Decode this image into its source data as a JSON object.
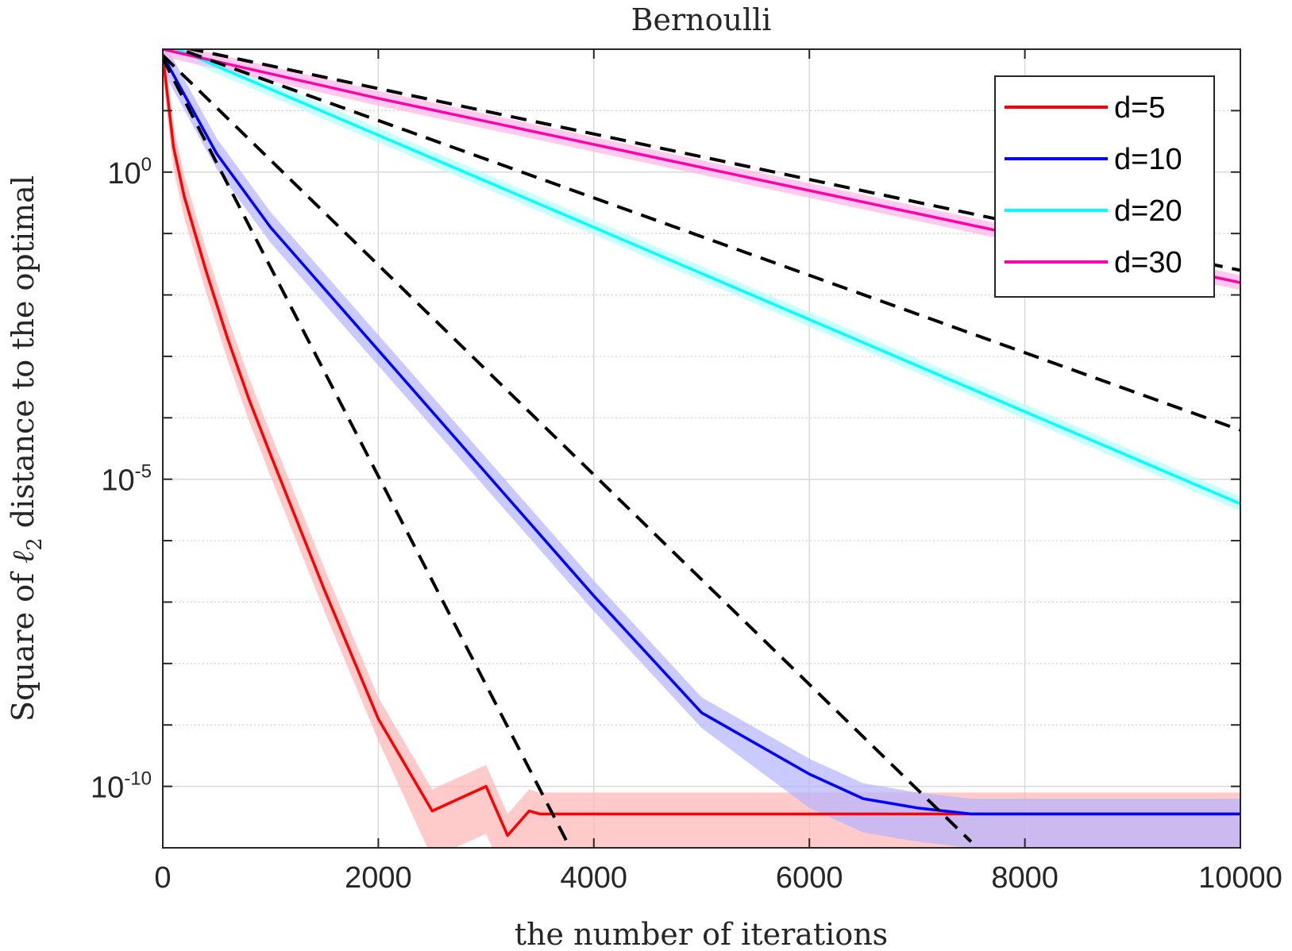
{
  "chart_data": {
    "type": "line",
    "title": "Bernoulli",
    "xlabel": "the number of iterations",
    "ylabel_parts": [
      "Square of ",
      "ℓ",
      "2",
      " distance to the optimal"
    ],
    "yscale": "log",
    "xlim": [
      0,
      10000
    ],
    "ylim_exponent": [
      -11,
      2
    ],
    "xticks": [
      0,
      2000,
      4000,
      6000,
      8000,
      10000
    ],
    "xtick_labels": [
      "0",
      "2000",
      "4000",
      "6000",
      "8000",
      "10000"
    ],
    "yticks": [
      {
        "base": "10",
        "exp": "0",
        "value_exponent": 0
      },
      {
        "base": "10",
        "exp": "-5",
        "value_exponent": -5
      },
      {
        "base": "10",
        "exp": "-10",
        "value_exponent": -10
      }
    ],
    "grid": true,
    "legend_location": "top-right",
    "series": [
      {
        "name": "d=5",
        "color": "#ff0000",
        "band_color": "#ffb3b3",
        "x": [
          0,
          100,
          200,
          400,
          600,
          800,
          1000,
          1500,
          2000,
          2500,
          3000,
          3200,
          3400,
          3500,
          3600,
          4000,
          5000,
          6000,
          7000,
          8000,
          9000,
          10000
        ],
        "y_exponent": [
          1.9,
          0.4,
          -0.4,
          -1.6,
          -2.7,
          -3.7,
          -4.6,
          -6.8,
          -8.9,
          -10.4,
          -10.0,
          -10.8,
          -10.4,
          -10.45,
          -10.45,
          -10.45,
          -10.45,
          -10.45,
          -10.45,
          -10.45,
          -10.45,
          -10.45
        ]
      },
      {
        "name": "d=10",
        "color": "#0000ff",
        "band_color": "#b3b3ff",
        "x": [
          0,
          500,
          1000,
          2000,
          3000,
          4000,
          5000,
          6000,
          6500,
          7000,
          7500,
          8000,
          9000,
          10000
        ],
        "y_exponent": [
          1.9,
          0.3,
          -0.9,
          -2.9,
          -4.9,
          -6.9,
          -8.8,
          -9.8,
          -10.2,
          -10.35,
          -10.45,
          -10.45,
          -10.45,
          -10.45
        ]
      },
      {
        "name": "d=20",
        "color": "#00ffff",
        "band_color": "#b3ffff",
        "x": [
          0,
          2000,
          4000,
          6000,
          8000,
          10000
        ],
        "y_exponent": [
          2.1,
          0.6,
          -0.9,
          -2.4,
          -3.9,
          -5.4
        ]
      },
      {
        "name": "d=30",
        "color": "#ff00aa",
        "band_color": "#ffb3e6",
        "x": [
          0,
          2000,
          4000,
          6000,
          8000,
          10000
        ],
        "y_exponent": [
          2.0,
          1.2,
          0.45,
          -0.3,
          -1.05,
          -1.8
        ]
      }
    ],
    "bounds": [
      {
        "color": "#000000",
        "dash": "dashed",
        "x": [
          0,
          3750
        ],
        "y_exponent": [
          1.85,
          -10.9
        ]
      },
      {
        "color": "#000000",
        "dash": "dashed",
        "x": [
          0,
          7500
        ],
        "y_exponent": [
          1.9,
          -10.9
        ]
      },
      {
        "color": "#000000",
        "dash": "dashed",
        "x": [
          0,
          10000
        ],
        "y_exponent": [
          2.1,
          -4.2
        ]
      },
      {
        "color": "#000000",
        "dash": "dashed",
        "x": [
          0,
          10000
        ],
        "y_exponent": [
          2.1,
          -1.6
        ]
      }
    ],
    "legend_entries": [
      "d=5",
      "d=10",
      "d=20",
      "d=30"
    ]
  }
}
